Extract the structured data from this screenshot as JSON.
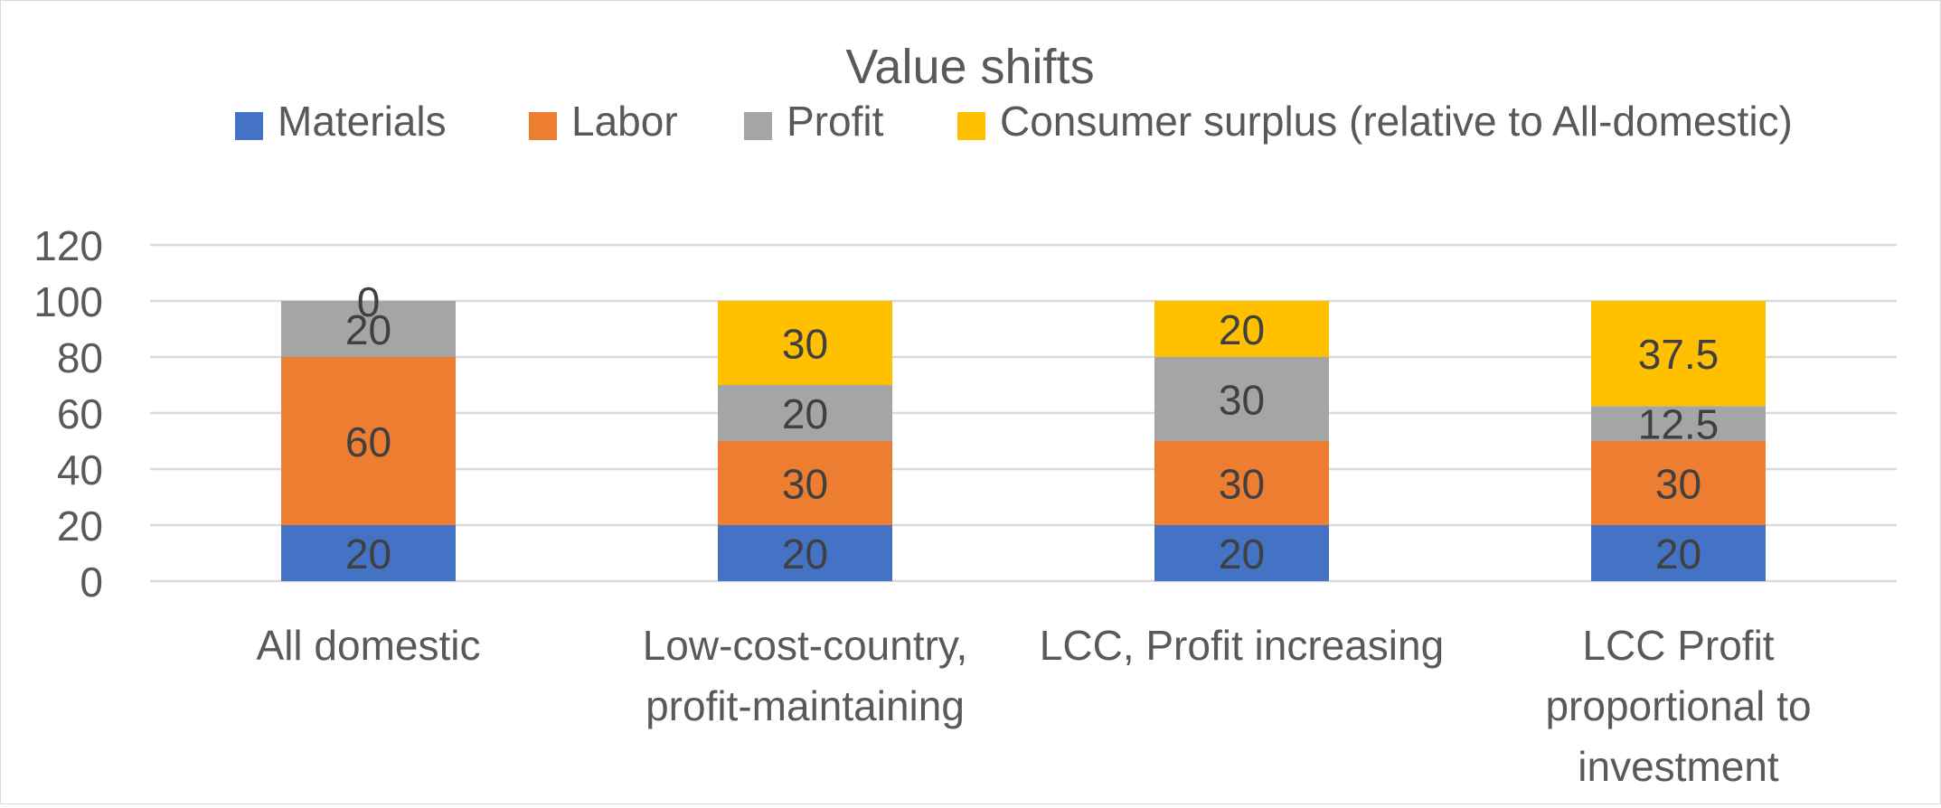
{
  "chart_data": {
    "type": "bar",
    "stacked": true,
    "title": "Value shifts",
    "xlabel": "",
    "ylabel": "",
    "ylim": [
      0,
      120
    ],
    "yticks": [
      0,
      20,
      40,
      60,
      80,
      100,
      120
    ],
    "grid": true,
    "legend_position": "top",
    "categories": [
      [
        "All domestic"
      ],
      [
        "Low-cost-country,",
        "profit-maintaining"
      ],
      [
        "LCC, Profit increasing"
      ],
      [
        "LCC Profit",
        "proportional to",
        "investment"
      ]
    ],
    "series": [
      {
        "name": "Materials",
        "color": "#4472c4",
        "values": [
          20,
          20,
          20,
          20
        ]
      },
      {
        "name": "Labor",
        "color": "#ed7d31",
        "values": [
          60,
          30,
          30,
          30
        ]
      },
      {
        "name": "Profit",
        "color": "#a5a5a5",
        "values": [
          20,
          20,
          30,
          12.5
        ]
      },
      {
        "name": "Consumer surplus (relative to All-domestic)",
        "color": "#ffc000",
        "values": [
          0,
          30,
          20,
          37.5
        ]
      }
    ]
  }
}
